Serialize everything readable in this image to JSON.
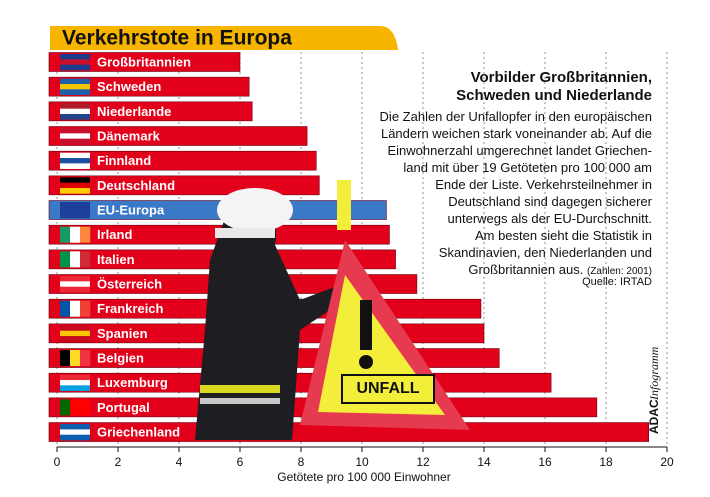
{
  "chart_data": {
    "type": "bar",
    "orientation": "horizontal",
    "title": "Verkehrstote in Europa",
    "categories": [
      "Großbritannien",
      "Schweden",
      "Niederlande",
      "Dänemark",
      "Finnland",
      "Deutschland",
      "EU-Europa",
      "Irland",
      "Italien",
      "Österreich",
      "Frankreich",
      "Spanien",
      "Belgien",
      "Luxemburg",
      "Portugal",
      "Griechenland"
    ],
    "values": [
      6.0,
      6.3,
      6.4,
      8.2,
      8.5,
      8.6,
      10.8,
      10.9,
      11.1,
      11.8,
      13.9,
      14.0,
      14.5,
      16.2,
      17.7,
      19.4
    ],
    "colors": [
      "#e2001a",
      "#e2001a",
      "#e2001a",
      "#e2001a",
      "#e2001a",
      "#e2001a",
      "#3a78c8",
      "#e2001a",
      "#e2001a",
      "#e2001a",
      "#e2001a",
      "#e2001a",
      "#e2001a",
      "#e2001a",
      "#e2001a",
      "#e2001a"
    ],
    "xlim": [
      0,
      20
    ],
    "xticks": [
      0,
      2,
      4,
      6,
      8,
      10,
      12,
      14,
      16,
      18,
      20
    ],
    "xlabel": "Getötete pro 100 000 Einwohner",
    "grid": true,
    "annotations": {
      "heading": [
        "Vorbilder Großbritannien,",
        "Schweden und Niederlande"
      ],
      "body": [
        "Die Zahlen der Unfallopfer in den europäischen",
        "Ländern weichen stark voneinander ab. Auf die",
        "Einwohnerzahl umgerechnet landet Griechen-",
        "land mit über 19 Getöteten pro 100 000 am",
        "Ende der Liste. Verkehrsteilnehmer in",
        "Deutschland sind dagegen sicherer",
        "unterwegs als der EU-Durchschnitt.",
        "Am besten sieht die Statistik in",
        "Skandinavien, den Niederlanden und",
        "Großbritannien aus."
      ],
      "note": "(Zahlen: 2001)",
      "source": "Quelle: IRTAD",
      "credit_brand": "ADAC",
      "credit": "Infogramm",
      "photo_sign": "UNFALL"
    }
  }
}
